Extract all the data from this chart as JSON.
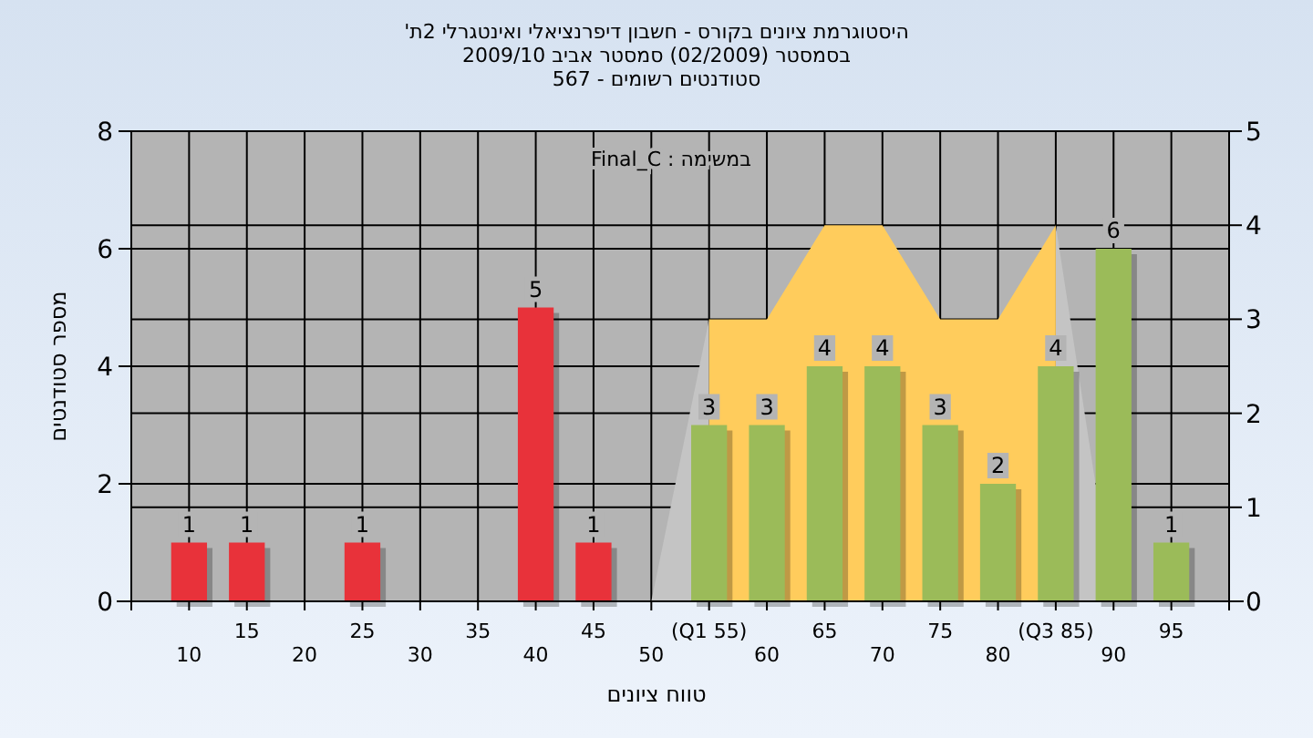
{
  "chart_data": {
    "type": "bar",
    "title": "היסטוגרמת ציונים בקורס - חשבון דיפרנציאלי ואינטגרלי 2ת'",
    "subtitle": "בסמסטר (02/2009) סמסטר אביב 2009/10\nסטודנטים רשומים - 567",
    "xlabel": "טווח ציונים",
    "ylabel": "מספר סטודנטים",
    "annotations": [
      "במשימה : Final_C"
    ],
    "categories": [
      "10",
      "15",
      "20",
      "25",
      "30",
      "35",
      "40",
      "45",
      "50",
      "(Q1 55)",
      "60",
      "65",
      "70",
      "75",
      "80",
      "(Q3 85)",
      "90",
      "95"
    ],
    "series": [
      {
        "type": "bar",
        "values": [
          1,
          1,
          0,
          1,
          0,
          0,
          5,
          1,
          0,
          3,
          3,
          4,
          4,
          3,
          2,
          4,
          6,
          1
        ],
        "colors": [
          "#e8323a",
          "#e8323a",
          "#e8323a",
          "#e8323a",
          "#e8323a",
          "#e8323a",
          "#e8323a",
          "#e8323a",
          "#e8323a",
          "#9bbb59",
          "#9bbb59",
          "#9bbb59",
          "#9bbb59",
          "#9bbb59",
          "#9bbb59",
          "#9bbb59",
          "#9bbb59",
          "#9bbb59"
        ],
        "value_labels": [
          "1",
          "1",
          null,
          "1",
          null,
          null,
          "5",
          "1",
          null,
          "3",
          "3",
          "4",
          "4",
          "3",
          "2",
          "4",
          "6",
          "1"
        ]
      },
      {
        "type": "area",
        "axis": "y2",
        "color": "#c4c4c4",
        "values": [
          null,
          null,
          null,
          null,
          null,
          null,
          null,
          null,
          0,
          3,
          null,
          null,
          null,
          null,
          null,
          4,
          0,
          null
        ]
      },
      {
        "type": "area",
        "axis": "y2",
        "color": "#ffcc5c",
        "values": [
          null,
          null,
          null,
          null,
          null,
          null,
          null,
          null,
          null,
          3,
          3,
          4,
          4,
          3,
          3,
          4,
          null,
          null
        ]
      }
    ],
    "ylim": [
      0,
      8
    ],
    "yticks": [
      0,
      2,
      4,
      6,
      8
    ],
    "y2lim": [
      0,
      5
    ],
    "y2ticks": [
      0,
      1,
      2,
      3,
      4,
      5
    ],
    "grid": true
  }
}
